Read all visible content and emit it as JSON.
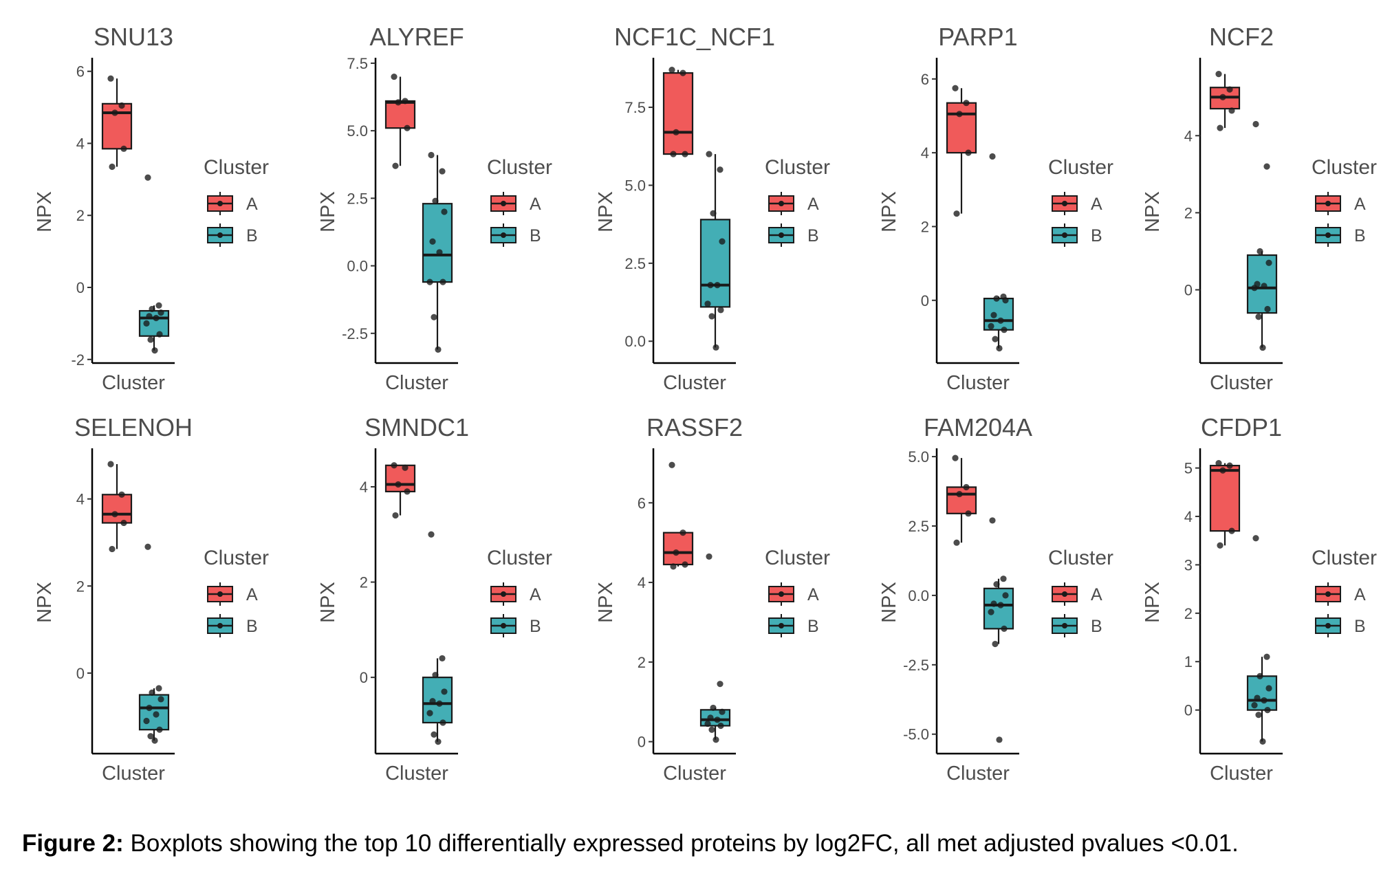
{
  "caption": {
    "label": "Figure 2:",
    "text": "Boxplots showing the top 10 differentially expressed proteins by log2FC, all met adjusted pvalues <0.01."
  },
  "colors": {
    "A": "#F05A5A",
    "B": "#43AEB5"
  },
  "chart_data": [
    {
      "type": "box",
      "title": "SNU13",
      "xlabel": "Cluster",
      "ylabel": "NPX",
      "ylim": [
        -2.1,
        6.3
      ],
      "yticks": [
        -2,
        0,
        2,
        4,
        6
      ],
      "ytick_labels": [
        "-2",
        "0",
        "2",
        "4",
        "6"
      ],
      "legend": {
        "title": "Cluster",
        "entries": [
          "A",
          "B"
        ]
      },
      "groups": [
        {
          "name": "A",
          "box": {
            "min": 3.35,
            "q1": 3.85,
            "median": 4.85,
            "q3": 5.1,
            "max": 5.8
          },
          "points": [
            5.8,
            5.05,
            4.85,
            3.85,
            3.35
          ]
        },
        {
          "name": "B",
          "box": {
            "min": -1.75,
            "q1": -1.35,
            "median": -0.85,
            "q3": -0.65,
            "max": -0.5
          },
          "points": [
            3.05,
            -0.5,
            -0.6,
            -0.7,
            -0.8,
            -0.85,
            -1.0,
            -1.3,
            -1.45,
            -1.75
          ]
        }
      ]
    },
    {
      "type": "box",
      "title": "ALYREF",
      "xlabel": "Cluster",
      "ylabel": "NPX",
      "ylim": [
        -3.6,
        7.6
      ],
      "yticks": [
        -2.5,
        0,
        2.5,
        5,
        7.5
      ],
      "ytick_labels": [
        "-2.5",
        "0.0",
        "2.5",
        "5.0",
        "7.5"
      ],
      "legend": {
        "title": "Cluster",
        "entries": [
          "A",
          "B"
        ]
      },
      "groups": [
        {
          "name": "A",
          "box": {
            "min": 3.7,
            "q1": 5.1,
            "median": 6.05,
            "q3": 6.1,
            "max": 7.0
          },
          "points": [
            7.0,
            6.1,
            6.05,
            5.1,
            3.7
          ]
        },
        {
          "name": "B",
          "box": {
            "min": -3.1,
            "q1": -0.6,
            "median": 0.4,
            "q3": 2.3,
            "max": 4.1
          },
          "points": [
            4.1,
            3.5,
            2.4,
            2.0,
            0.9,
            0.5,
            -0.6,
            -0.6,
            -1.9,
            -3.1
          ]
        }
      ]
    },
    {
      "type": "box",
      "title": "NCF1C_NCF1",
      "xlabel": "Cluster",
      "ylabel": "NPX",
      "ylim": [
        -0.7,
        9.0
      ],
      "yticks": [
        0,
        2.5,
        5,
        7.5
      ],
      "ytick_labels": [
        "0.0",
        "2.5",
        "5.0",
        "7.5"
      ],
      "legend": {
        "title": "Cluster",
        "entries": [
          "A",
          "B"
        ]
      },
      "groups": [
        {
          "name": "A",
          "box": {
            "min": 6.0,
            "q1": 6.0,
            "median": 6.7,
            "q3": 8.6,
            "max": 8.7
          },
          "points": [
            8.7,
            8.6,
            6.7,
            6.0,
            6.0
          ]
        },
        {
          "name": "B",
          "box": {
            "min": -0.2,
            "q1": 1.1,
            "median": 1.8,
            "q3": 3.9,
            "max": 6.0
          },
          "points": [
            6.0,
            5.5,
            4.1,
            3.2,
            1.8,
            1.8,
            1.2,
            1.0,
            0.8,
            -0.2
          ]
        }
      ]
    },
    {
      "type": "box",
      "title": "PARP1",
      "xlabel": "Cluster",
      "ylabel": "NPX",
      "ylim": [
        -1.7,
        6.5
      ],
      "yticks": [
        0,
        2,
        4,
        6
      ],
      "ytick_labels": [
        "0",
        "2",
        "4",
        "6"
      ],
      "legend": {
        "title": "Cluster",
        "entries": [
          "A",
          "B"
        ]
      },
      "groups": [
        {
          "name": "A",
          "box": {
            "min": 2.35,
            "q1": 4.0,
            "median": 5.05,
            "q3": 5.35,
            "max": 5.75
          },
          "points": [
            5.75,
            5.35,
            5.05,
            4.0,
            2.35
          ]
        },
        {
          "name": "B",
          "box": {
            "min": -1.3,
            "q1": -0.8,
            "median": -0.55,
            "q3": 0.05,
            "max": 0.1
          },
          "points": [
            3.9,
            0.1,
            0.05,
            0.0,
            -0.4,
            -0.55,
            -0.7,
            -0.8,
            -1.05,
            -1.3
          ]
        }
      ]
    },
    {
      "type": "box",
      "title": "NCF2",
      "xlabel": "Cluster",
      "ylabel": "NPX",
      "ylim": [
        -1.9,
        5.95
      ],
      "yticks": [
        0,
        2,
        4
      ],
      "ytick_labels": [
        "0",
        "2",
        "4"
      ],
      "legend": {
        "title": "Cluster",
        "entries": [
          "A",
          "B"
        ]
      },
      "groups": [
        {
          "name": "A",
          "box": {
            "min": 4.2,
            "q1": 4.7,
            "median": 5.0,
            "q3": 5.25,
            "max": 5.6
          },
          "points": [
            5.6,
            5.2,
            5.0,
            4.65,
            4.2
          ]
        },
        {
          "name": "B",
          "box": {
            "min": -1.5,
            "q1": -0.6,
            "median": 0.05,
            "q3": 0.9,
            "max": 1.0
          },
          "points": [
            4.3,
            3.2,
            1.0,
            0.7,
            0.15,
            0.1,
            0.05,
            -0.5,
            -0.7,
            -1.5
          ]
        }
      ]
    },
    {
      "type": "box",
      "title": "SELENOH",
      "xlabel": "Cluster",
      "ylabel": "NPX",
      "ylim": [
        -1.85,
        5.1
      ],
      "yticks": [
        0,
        2,
        4
      ],
      "ytick_labels": [
        "0",
        "2",
        "4"
      ],
      "legend": {
        "title": "Cluster",
        "entries": [
          "A",
          "B"
        ]
      },
      "groups": [
        {
          "name": "A",
          "box": {
            "min": 2.85,
            "q1": 3.45,
            "median": 3.65,
            "q3": 4.1,
            "max": 4.8
          },
          "points": [
            4.8,
            4.1,
            3.65,
            3.45,
            2.85
          ]
        },
        {
          "name": "B",
          "box": {
            "min": -1.55,
            "q1": -1.3,
            "median": -0.8,
            "q3": -0.5,
            "max": -0.35
          },
          "points": [
            2.9,
            -0.35,
            -0.45,
            -0.6,
            -0.8,
            -0.95,
            -1.1,
            -1.3,
            -1.45,
            -1.55
          ]
        }
      ]
    },
    {
      "type": "box",
      "title": "SMNDC1",
      "xlabel": "Cluster",
      "ylabel": "NPX",
      "ylim": [
        -1.6,
        4.75
      ],
      "yticks": [
        0,
        2,
        4
      ],
      "ytick_labels": [
        "0",
        "2",
        "4"
      ],
      "legend": {
        "title": "Cluster",
        "entries": [
          "A",
          "B"
        ]
      },
      "groups": [
        {
          "name": "A",
          "box": {
            "min": 3.4,
            "q1": 3.9,
            "median": 4.05,
            "q3": 4.45,
            "max": 4.45
          },
          "points": [
            4.45,
            4.4,
            4.05,
            3.9,
            3.4
          ]
        },
        {
          "name": "B",
          "box": {
            "min": -1.35,
            "q1": -0.95,
            "median": -0.55,
            "q3": 0.0,
            "max": 0.4
          },
          "points": [
            3.0,
            0.4,
            0.05,
            -0.3,
            -0.5,
            -0.55,
            -0.75,
            -0.95,
            -1.2,
            -1.35
          ]
        }
      ]
    },
    {
      "type": "box",
      "title": "RASSF2",
      "xlabel": "Cluster",
      "ylabel": "NPX",
      "ylim": [
        -0.3,
        7.3
      ],
      "yticks": [
        0,
        2,
        4,
        6
      ],
      "ytick_labels": [
        "0",
        "2",
        "4",
        "6"
      ],
      "legend": {
        "title": "Cluster",
        "entries": [
          "A",
          "B"
        ]
      },
      "groups": [
        {
          "name": "A",
          "box": {
            "min": 4.4,
            "q1": 4.45,
            "median": 4.75,
            "q3": 5.25,
            "max": 5.25
          },
          "points": [
            6.95,
            5.25,
            4.75,
            4.45,
            4.4
          ]
        },
        {
          "name": "B",
          "box": {
            "min": 0.05,
            "q1": 0.4,
            "median": 0.55,
            "q3": 0.8,
            "max": 0.85
          },
          "points": [
            4.65,
            1.45,
            0.85,
            0.75,
            0.6,
            0.55,
            0.45,
            0.4,
            0.3,
            0.05
          ]
        }
      ]
    },
    {
      "type": "box",
      "title": "FAM204A",
      "xlabel": "Cluster",
      "ylabel": "NPX",
      "ylim": [
        -5.7,
        5.2
      ],
      "yticks": [
        -5,
        -2.5,
        0,
        2.5,
        5
      ],
      "ytick_labels": [
        "-5.0",
        "-2.5",
        "0.0",
        "2.5",
        "5.0"
      ],
      "legend": {
        "title": "Cluster",
        "entries": [
          "A",
          "B"
        ]
      },
      "groups": [
        {
          "name": "A",
          "box": {
            "min": 1.9,
            "q1": 2.95,
            "median": 3.65,
            "q3": 3.9,
            "max": 4.95
          },
          "points": [
            4.95,
            3.9,
            3.65,
            2.95,
            1.9
          ]
        },
        {
          "name": "B",
          "box": {
            "min": -1.75,
            "q1": -1.2,
            "median": -0.35,
            "q3": 0.25,
            "max": 0.6
          },
          "points": [
            2.7,
            0.6,
            0.4,
            0.0,
            -0.3,
            -0.35,
            -0.6,
            -1.2,
            -1.75,
            -5.2
          ]
        }
      ]
    },
    {
      "type": "box",
      "title": "CFDP1",
      "xlabel": "Cluster",
      "ylabel": "NPX",
      "ylim": [
        -0.9,
        5.35
      ],
      "yticks": [
        0,
        1,
        2,
        3,
        4,
        5
      ],
      "ytick_labels": [
        "0",
        "1",
        "2",
        "3",
        "4",
        "5"
      ],
      "legend": {
        "title": "Cluster",
        "entries": [
          "A",
          "B"
        ]
      },
      "groups": [
        {
          "name": "A",
          "box": {
            "min": 3.4,
            "q1": 3.7,
            "median": 4.95,
            "q3": 5.05,
            "max": 5.1
          },
          "points": [
            5.1,
            5.05,
            4.95,
            3.7,
            3.4
          ]
        },
        {
          "name": "B",
          "box": {
            "min": -0.65,
            "q1": 0.0,
            "median": 0.2,
            "q3": 0.7,
            "max": 1.1
          },
          "points": [
            3.55,
            1.1,
            0.7,
            0.45,
            0.25,
            0.2,
            0.1,
            0.0,
            -0.1,
            -0.65
          ]
        }
      ]
    }
  ]
}
